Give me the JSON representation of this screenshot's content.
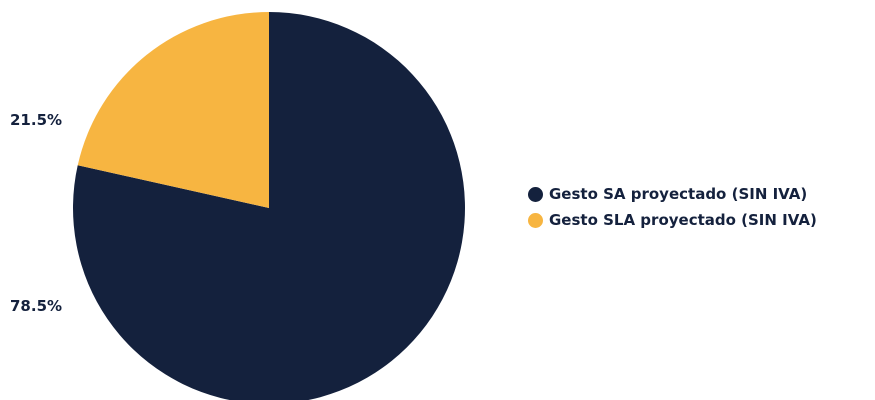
{
  "chart_data": {
    "type": "pie",
    "title": "",
    "series": [
      {
        "name": "Gesto SA proyectado (SIN IVA)",
        "value": 78.5,
        "label": "78.5%",
        "color": "#14213d"
      },
      {
        "name": "Gesto SLA proyectado (SIN IVA)",
        "value": 21.5,
        "label": "21.5%",
        "color": "#f7b541"
      }
    ],
    "legend_position": "right"
  }
}
